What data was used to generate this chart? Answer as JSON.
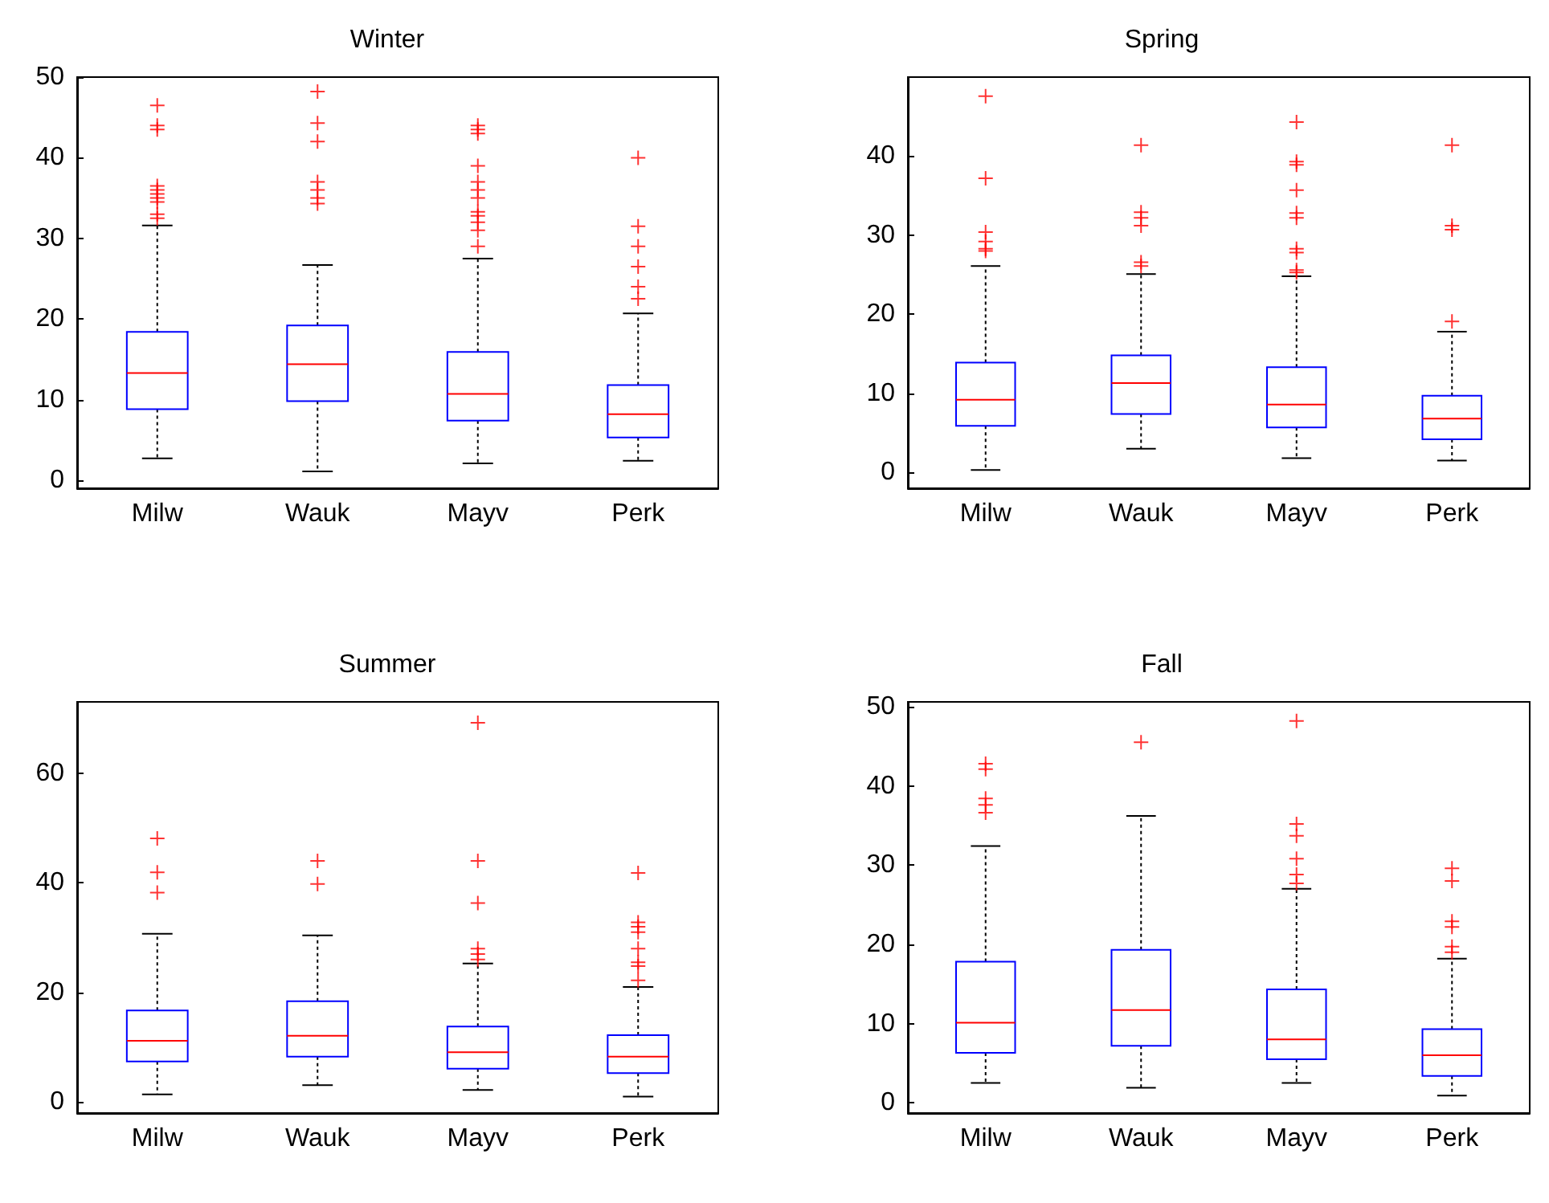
{
  "chart_data": [
    {
      "type": "box",
      "title": "Winter",
      "categories": [
        "Milw",
        "Wauk",
        "Mayv",
        "Perk"
      ],
      "ylim": [
        -1,
        50
      ],
      "yticks": [
        0,
        10,
        20,
        30,
        40,
        50
      ],
      "series": [
        {
          "color": "#0000ff",
          "boxes": [
            {
              "low": 2.7,
              "q1": 8.8,
              "median": 13.3,
              "q3": 18.4,
              "high": 31.6,
              "outliers": [
                46.5,
                44,
                43.5,
                36.5,
                36,
                35.5,
                35,
                34.5,
                33,
                32.5
              ]
            },
            {
              "low": 1.1,
              "q1": 9.8,
              "median": 14.4,
              "q3": 19.2,
              "high": 26.7,
              "outliers": [
                48.2,
                44.3,
                42,
                37,
                36,
                35,
                34.3
              ]
            },
            {
              "low": 2.1,
              "q1": 7.4,
              "median": 10.7,
              "q3": 15.9,
              "high": 27.5,
              "outliers": [
                44,
                43.5,
                43,
                39,
                37,
                36,
                35,
                33.3,
                32.8,
                32,
                31,
                29
              ]
            },
            {
              "low": 2.4,
              "q1": 5.3,
              "median": 8.2,
              "q3": 11.8,
              "high": 20.7,
              "outliers": [
                40,
                31.5,
                29,
                26.5,
                24,
                22.5
              ]
            }
          ]
        }
      ]
    },
    {
      "type": "box",
      "title": "Spring",
      "categories": [
        "Milw",
        "Wauk",
        "Mayv",
        "Perk"
      ],
      "ylim": [
        -2,
        50
      ],
      "yticks": [
        0,
        10,
        20,
        30,
        40
      ],
      "series": [
        {
          "color": "#0000ff",
          "boxes": [
            {
              "low": 0.3,
              "q1": 5.9,
              "median": 9.2,
              "q3": 13.9,
              "high": 26.1,
              "outliers": [
                47.6,
                37.2,
                30.4,
                29.2,
                28.3,
                28
              ]
            },
            {
              "low": 3,
              "q1": 7.4,
              "median": 11.3,
              "q3": 14.8,
              "high": 25.1,
              "outliers": [
                41.4,
                32.9,
                32.2,
                31.2,
                26.6,
                26.1
              ]
            },
            {
              "low": 1.8,
              "q1": 5.7,
              "median": 8.6,
              "q3": 13.3,
              "high": 24.8,
              "outliers": [
                44.3,
                39.3,
                38.9,
                35.7,
                32.8,
                32.2,
                28.3,
                27.8,
                25.6,
                25.3
              ]
            },
            {
              "low": 1.5,
              "q1": 4.2,
              "median": 6.8,
              "q3": 9.7,
              "high": 17.8,
              "outliers": [
                41.4,
                31.2,
                30.7,
                19.1
              ]
            }
          ]
        }
      ]
    },
    {
      "type": "box",
      "title": "Summer",
      "categories": [
        "Milw",
        "Wauk",
        "Mayv",
        "Perk"
      ],
      "ylim": [
        -2,
        73
      ],
      "yticks": [
        0,
        20,
        40,
        60
      ],
      "series": [
        {
          "color": "#0000ff",
          "boxes": [
            {
              "low": 1.4,
              "q1": 7.4,
              "median": 11.2,
              "q3": 16.7,
              "high": 30.7,
              "outliers": [
                48.1,
                41.9,
                38.2
              ]
            },
            {
              "low": 3.1,
              "q1": 8.3,
              "median": 12.1,
              "q3": 18.4,
              "high": 30.4,
              "outliers": [
                44,
                39.8
              ]
            },
            {
              "low": 2.2,
              "q1": 6.1,
              "median": 9.1,
              "q3": 13.8,
              "high": 25.3,
              "outliers": [
                69.2,
                44,
                36.3,
                28,
                27,
                26
              ]
            },
            {
              "low": 1,
              "q1": 5.3,
              "median": 8.3,
              "q3": 12.2,
              "high": 21,
              "outliers": [
                41.8,
                32.8,
                32,
                31,
                28,
                25.5,
                24.8,
                22.2
              ]
            }
          ]
        }
      ]
    },
    {
      "type": "box",
      "title": "Fall",
      "categories": [
        "Milw",
        "Wauk",
        "Mayv",
        "Perk"
      ],
      "ylim": [
        -1.3,
        50.6
      ],
      "yticks": [
        0,
        10,
        20,
        30,
        40,
        50
      ],
      "series": [
        {
          "color": "#0000ff",
          "boxes": [
            {
              "low": 2.5,
              "q1": 6.3,
              "median": 10.1,
              "q3": 17.8,
              "high": 32.4,
              "outliers": [
                42.8,
                42.1,
                38.4,
                37.6,
                36.6
              ]
            },
            {
              "low": 1.9,
              "q1": 7.2,
              "median": 11.7,
              "q3": 19.3,
              "high": 36.2,
              "outliers": [
                45.5
              ]
            },
            {
              "low": 2.5,
              "q1": 5.5,
              "median": 8,
              "q3": 14.3,
              "high": 27,
              "outliers": [
                48.2,
                35.2,
                33.7,
                30.8,
                28.8,
                27.7
              ]
            },
            {
              "low": 0.9,
              "q1": 3.4,
              "median": 6,
              "q3": 9.3,
              "high": 18.2,
              "outliers": [
                29.6,
                28,
                22.9,
                22.2,
                19.7,
                19
              ]
            }
          ]
        }
      ]
    }
  ]
}
